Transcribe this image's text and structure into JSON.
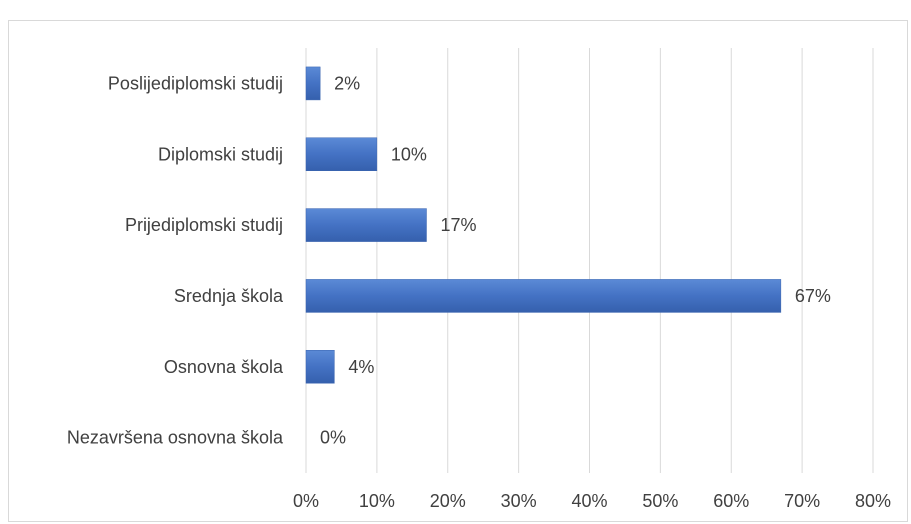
{
  "chart_data": {
    "type": "bar",
    "orientation": "horizontal",
    "categories": [
      "Poslijediplomski studij",
      "Diplomski studij",
      "Prijediplomski studij",
      "Srednja škola",
      "Osnovna škola",
      "Nezavršena osnovna škola"
    ],
    "values": [
      2,
      10,
      17,
      67,
      4,
      0
    ],
    "data_labels": [
      "2%",
      "10%",
      "17%",
      "67%",
      "4%",
      "0%"
    ],
    "x_ticks": [
      "0%",
      "10%",
      "20%",
      "30%",
      "40%",
      "50%",
      "60%",
      "70%",
      "80%"
    ],
    "xlim": [
      0,
      80
    ],
    "title": "",
    "xlabel": "",
    "ylabel": "",
    "grid": "vertical",
    "legend": "none",
    "colors": {
      "bar": "#4472c4",
      "grid": "#d9d9d9",
      "text": "#404040"
    }
  }
}
